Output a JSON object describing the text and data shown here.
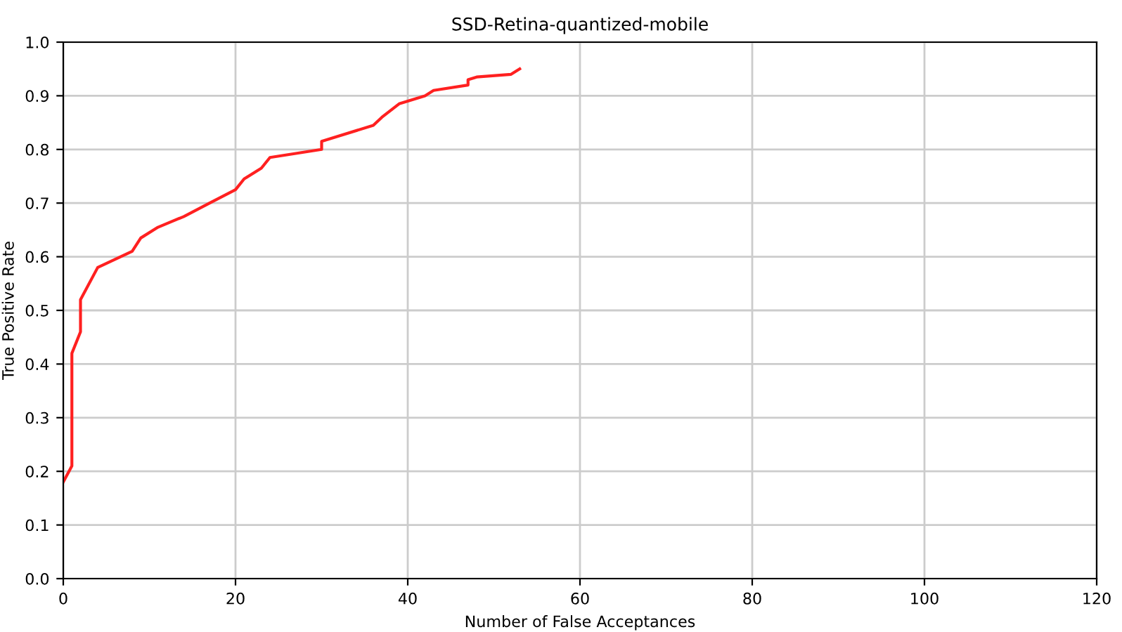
{
  "chart_data": {
    "type": "line",
    "title": "SSD-Retina-quantized-mobile",
    "xlabel": "Number of False Acceptances",
    "ylabel": "True Positive Rate",
    "x": [
      0,
      1,
      1,
      2,
      2,
      4,
      8,
      9,
      11,
      14,
      17,
      20,
      21,
      23,
      24,
      30,
      30,
      36,
      37,
      39,
      42,
      43,
      47,
      47,
      48,
      52,
      53
    ],
    "series": [
      {
        "color": "#ff2020",
        "values": [
          0.18,
          0.21,
          0.42,
          0.46,
          0.52,
          0.58,
          0.61,
          0.635,
          0.655,
          0.675,
          0.7,
          0.725,
          0.745,
          0.765,
          0.785,
          0.8,
          0.815,
          0.845,
          0.86,
          0.885,
          0.9,
          0.91,
          0.92,
          0.93,
          0.935,
          0.94,
          0.95
        ]
      }
    ],
    "xlim": [
      0,
      120
    ],
    "xticks": [
      0,
      20,
      40,
      60,
      80,
      100,
      120
    ],
    "ylim": [
      0,
      1.0
    ],
    "yticks": [
      {
        "value": 0,
        "label": "0.0"
      },
      0.1,
      0.2,
      0.3,
      0.4,
      0.5,
      0.6,
      0.7,
      0.8,
      0.9,
      {
        "value": 1.0,
        "label": "1.0"
      }
    ],
    "grid": true
  }
}
